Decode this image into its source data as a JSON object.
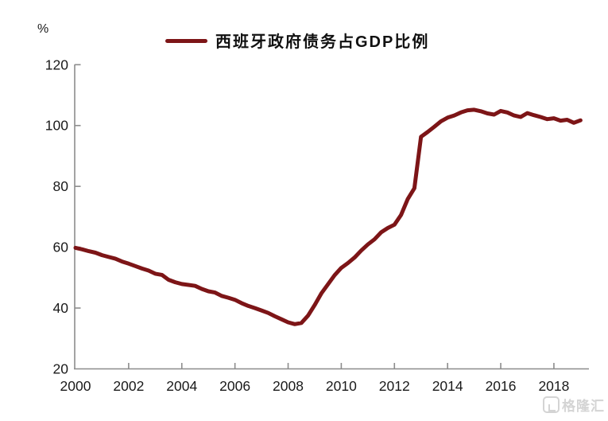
{
  "page": {
    "background": "#FFFFFF"
  },
  "watermark": {
    "text": "格隆汇"
  },
  "chart_data": {
    "type": "line",
    "title": "",
    "legend": "西班牙政府债务占GDP比例",
    "legend_position": "top-center",
    "ylabel": "%",
    "xlabel": "",
    "ylim": [
      20,
      120
    ],
    "xlim": [
      2000,
      2019.4
    ],
    "y_ticks": [
      20,
      40,
      60,
      80,
      100,
      120
    ],
    "x_ticks": [
      2000,
      2002,
      2004,
      2006,
      2008,
      2010,
      2012,
      2014,
      2016,
      2018
    ],
    "grid": false,
    "line_color": "#7D1517",
    "axis_color": "#8C8C8C",
    "text_color": "#1A1A1A",
    "series": [
      {
        "name": "西班牙政府债务占GDP比例",
        "color": "#7D1517",
        "points": [
          [
            2000.0,
            59.8
          ],
          [
            2000.25,
            59.3
          ],
          [
            2000.5,
            58.7
          ],
          [
            2000.75,
            58.2
          ],
          [
            2001.0,
            57.4
          ],
          [
            2001.25,
            56.8
          ],
          [
            2001.5,
            56.2
          ],
          [
            2001.75,
            55.3
          ],
          [
            2002.0,
            54.6
          ],
          [
            2002.25,
            53.8
          ],
          [
            2002.5,
            53.0
          ],
          [
            2002.75,
            52.3
          ],
          [
            2003.0,
            51.3
          ],
          [
            2003.25,
            50.9
          ],
          [
            2003.5,
            49.3
          ],
          [
            2003.75,
            48.5
          ],
          [
            2004.0,
            47.9
          ],
          [
            2004.25,
            47.6
          ],
          [
            2004.5,
            47.3
          ],
          [
            2004.75,
            46.3
          ],
          [
            2005.0,
            45.5
          ],
          [
            2005.25,
            45.1
          ],
          [
            2005.5,
            44.0
          ],
          [
            2005.75,
            43.4
          ],
          [
            2006.0,
            42.7
          ],
          [
            2006.25,
            41.6
          ],
          [
            2006.5,
            40.7
          ],
          [
            2006.75,
            40.0
          ],
          [
            2007.0,
            39.2
          ],
          [
            2007.25,
            38.4
          ],
          [
            2007.5,
            37.3
          ],
          [
            2007.75,
            36.3
          ],
          [
            2008.0,
            35.3
          ],
          [
            2008.25,
            34.7
          ],
          [
            2008.5,
            35.1
          ],
          [
            2008.75,
            37.5
          ],
          [
            2009.0,
            41.0
          ],
          [
            2009.25,
            44.8
          ],
          [
            2009.5,
            47.8
          ],
          [
            2009.75,
            50.8
          ],
          [
            2010.0,
            53.2
          ],
          [
            2010.25,
            54.8
          ],
          [
            2010.5,
            56.6
          ],
          [
            2010.75,
            58.9
          ],
          [
            2011.0,
            60.9
          ],
          [
            2011.25,
            62.6
          ],
          [
            2011.5,
            64.9
          ],
          [
            2011.75,
            66.3
          ],
          [
            2012.0,
            67.4
          ],
          [
            2012.25,
            70.6
          ],
          [
            2012.5,
            75.8
          ],
          [
            2012.75,
            79.4
          ],
          [
            2013.0,
            96.3
          ],
          [
            2013.25,
            97.9
          ],
          [
            2013.5,
            99.6
          ],
          [
            2013.75,
            101.4
          ],
          [
            2014.0,
            102.6
          ],
          [
            2014.25,
            103.3
          ],
          [
            2014.5,
            104.3
          ],
          [
            2014.75,
            105.0
          ],
          [
            2015.0,
            105.2
          ],
          [
            2015.25,
            104.7
          ],
          [
            2015.5,
            104.0
          ],
          [
            2015.75,
            103.6
          ],
          [
            2016.0,
            104.8
          ],
          [
            2016.25,
            104.3
          ],
          [
            2016.5,
            103.3
          ],
          [
            2016.75,
            102.8
          ],
          [
            2017.0,
            104.1
          ],
          [
            2017.25,
            103.4
          ],
          [
            2017.5,
            102.8
          ],
          [
            2017.75,
            102.1
          ],
          [
            2018.0,
            102.4
          ],
          [
            2018.25,
            101.6
          ],
          [
            2018.5,
            101.9
          ],
          [
            2018.75,
            100.9
          ],
          [
            2019.0,
            101.7
          ]
        ]
      }
    ]
  }
}
